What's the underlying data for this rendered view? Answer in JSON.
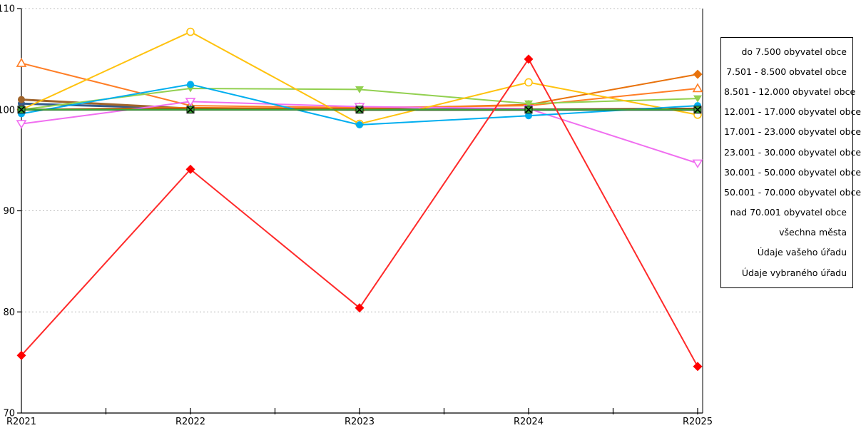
{
  "chart_data": {
    "type": "line",
    "title": "",
    "xlabel": "",
    "ylabel": "",
    "categories": [
      "R2021",
      "R2022",
      "R2023",
      "R2024",
      "R2025"
    ],
    "ylim": [
      70,
      110
    ],
    "y_ticks": [
      70,
      80,
      90,
      100,
      110
    ],
    "grid": "horizontal-dotted",
    "grid_values": [
      80,
      90,
      100,
      110
    ],
    "legend_position": "right-outside",
    "axis_color": "#000000",
    "grid_color": "#bfbfbf",
    "series": [
      {
        "name": "do 7.500 obyvatel obce",
        "color": "#FF7E26",
        "marker": "triangle-up-open",
        "line_width": 2,
        "values": [
          104.6,
          100.4,
          100.2,
          100.4,
          102.1
        ]
      },
      {
        "name": "7.501 - 8.500 obvatel obce",
        "color": "#FFC20E",
        "marker": "circle-open",
        "line_width": 2,
        "values": [
          100.0,
          107.7,
          98.6,
          102.7,
          99.5
        ]
      },
      {
        "name": "8.501 - 12.000 obyvatel obce",
        "color": "#92D050",
        "marker": "triangle-down-filled",
        "line_width": 2,
        "values": [
          100.0,
          102.1,
          102.0,
          100.6,
          101.1
        ]
      },
      {
        "name": "12.001 - 17.000 obyvatel obce",
        "color": "#00AEEF",
        "marker": "circle-filled",
        "line_width": 2,
        "values": [
          99.6,
          102.5,
          98.5,
          99.4,
          100.4
        ]
      },
      {
        "name": "17.001 - 23.000 obyvatel obce",
        "color": "#F06EF0",
        "marker": "triangle-down-open",
        "line_width": 2,
        "values": [
          98.6,
          100.8,
          100.3,
          100.1,
          94.7
        ]
      },
      {
        "name": "23.001 - 30.000 obyvatel obce",
        "color": "#A0642B",
        "marker": "circle-filled",
        "line_width": 3,
        "values": [
          101.0,
          100.1,
          100.0,
          100.0,
          100.1
        ]
      },
      {
        "name": "30.001 - 50.000 obyvatel obce",
        "color": "#335B8C",
        "marker": "circle-filled",
        "line_width": 3,
        "values": [
          100.6,
          100.1,
          100.0,
          100.0,
          100.0
        ]
      },
      {
        "name": "50.001 - 70.000 obyvatel obce",
        "color": "#00826E",
        "marker": "none",
        "line_width": 2,
        "values": [
          100.0,
          100.0,
          100.0,
          100.0,
          100.0
        ]
      },
      {
        "name": "nad 70.001 obyvatel obce",
        "color": "#E8720C",
        "marker": "diamond-filled",
        "line_width": 2,
        "values": [
          100.0,
          100.2,
          100.1,
          100.5,
          103.5
        ]
      },
      {
        "name": "všechna města",
        "color": "#000000",
        "marker": "none",
        "line_width": 2.4,
        "values": [
          100.0,
          100.0,
          100.0,
          100.0,
          100.0
        ]
      },
      {
        "name": "Údaje vašeho úřadu",
        "color": "#3AAA35",
        "marker": "square-x",
        "line_width": 2,
        "values": [
          100.0,
          100.0,
          100.0,
          100.0,
          100.0
        ]
      },
      {
        "name": "Údaje vybraného úřadu",
        "color": "#FF2A2A",
        "marker": "diamond-filled-red",
        "line_width": 2,
        "values": [
          75.7,
          94.1,
          80.4,
          105.0,
          74.6
        ]
      }
    ],
    "draw_order": [
      7,
      6,
      5,
      8,
      0,
      4,
      2,
      1,
      3,
      9,
      10,
      11
    ],
    "plot": {
      "x_left": 30,
      "x_right": 985,
      "y_top": 12,
      "y_bottom": 579
    }
  }
}
